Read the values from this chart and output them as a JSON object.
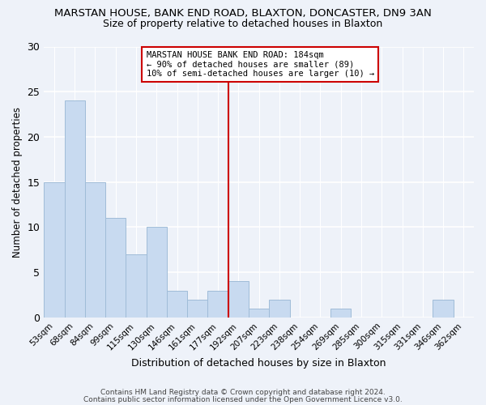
{
  "title": "MARSTAN HOUSE, BANK END ROAD, BLAXTON, DONCASTER, DN9 3AN",
  "subtitle": "Size of property relative to detached houses in Blaxton",
  "xlabel": "Distribution of detached houses by size in Blaxton",
  "ylabel": "Number of detached properties",
  "bar_labels": [
    "53sqm",
    "68sqm",
    "84sqm",
    "99sqm",
    "115sqm",
    "130sqm",
    "146sqm",
    "161sqm",
    "177sqm",
    "192sqm",
    "207sqm",
    "223sqm",
    "238sqm",
    "254sqm",
    "269sqm",
    "285sqm",
    "300sqm",
    "315sqm",
    "331sqm",
    "346sqm",
    "362sqm"
  ],
  "bar_values": [
    15,
    24,
    15,
    11,
    7,
    10,
    3,
    2,
    3,
    4,
    1,
    2,
    0,
    0,
    1,
    0,
    0,
    0,
    0,
    2,
    0
  ],
  "bar_color": "#c8daf0",
  "bar_edge_color": "#a0bcd8",
  "vline_x": 9.0,
  "vline_color": "#cc0000",
  "annotation_text": "MARSTAN HOUSE BANK END ROAD: 184sqm\n← 90% of detached houses are smaller (89)\n10% of semi-detached houses are larger (10) →",
  "annotation_box_color": "#ffffff",
  "annotation_box_edge": "#cc0000",
  "ylim": [
    0,
    30
  ],
  "yticks": [
    0,
    5,
    10,
    15,
    20,
    25,
    30
  ],
  "footer1": "Contains HM Land Registry data © Crown copyright and database right 2024.",
  "footer2": "Contains public sector information licensed under the Open Government Licence v3.0.",
  "background_color": "#eef2f9"
}
